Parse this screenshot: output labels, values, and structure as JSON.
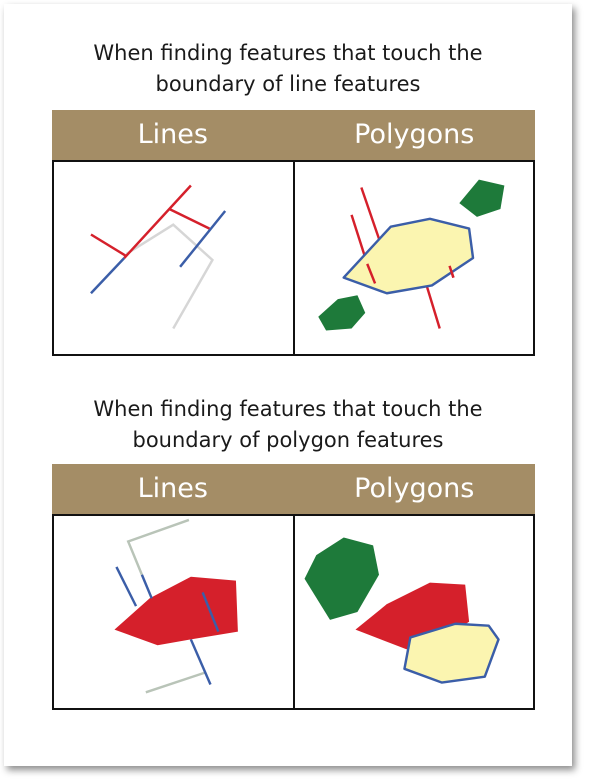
{
  "sections": [
    {
      "title_line1": "When finding features that touch the",
      "title_line2": "boundary of line features",
      "col_left": "Lines",
      "col_right": "Polygons"
    },
    {
      "title_line1": "When finding features that touch the",
      "title_line2": "boundary of polygon features",
      "col_left": "Lines",
      "col_right": "Polygons"
    }
  ],
  "colors": {
    "header": "#a48d66",
    "red": "#d5202b",
    "blue": "#3b5ea8",
    "gray": "#d6d6d6",
    "green": "#1e7a3a",
    "yellow": "#fbf5b0"
  }
}
